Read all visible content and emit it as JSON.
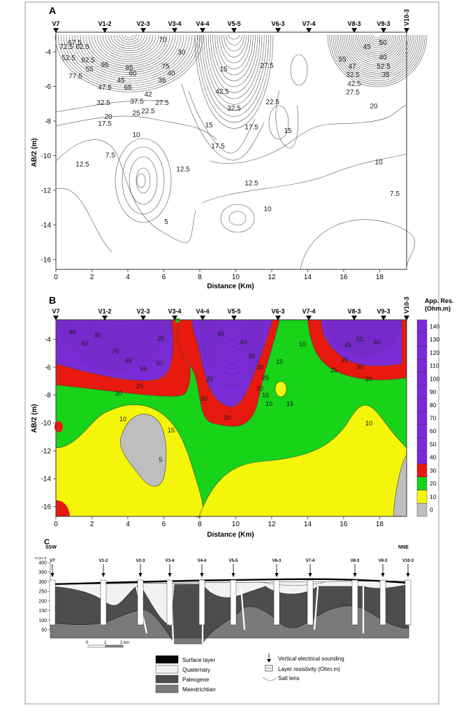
{
  "figure": {
    "panels": [
      {
        "label": "A",
        "y_axis_label": "AB/2 (m)",
        "x_axis_label": "Distance (Km)",
        "x_ticks": [
          "0",
          "2",
          "4",
          "6",
          "8",
          "10",
          "12",
          "14",
          "16",
          "18"
        ],
        "y_ticks": [
          "-4",
          "-6",
          "-8",
          "-10",
          "-12",
          "-14",
          "-16"
        ],
        "stations": [
          "V7",
          "V1-2",
          "V2-3",
          "V3-4",
          "V4-4",
          "V5-5",
          "V6-3",
          "V7-4",
          "V8-3",
          "V9-3",
          "V10-3"
        ],
        "contour_labels": [
          "72.5",
          "67.5",
          "62.5",
          "52.5",
          "55",
          "47.5",
          "32.5",
          "17.5",
          "95",
          "85",
          "77.5",
          "82.5",
          "65",
          "42",
          "37.5",
          "22.5",
          "27.5",
          "25",
          "20",
          "75",
          "70",
          "60",
          "45",
          "35",
          "30",
          "40",
          "10",
          "12.5",
          "7.5",
          "5",
          "15",
          "42.5",
          "32.5",
          "27.5",
          "22.5",
          "17.5",
          "15",
          "12.5",
          "10",
          "55",
          "47",
          "52.5",
          "42.5",
          "32.5",
          "27.5",
          "20",
          "35",
          "40",
          "45",
          "50",
          "10",
          "7.5",
          "12.5",
          "15",
          "17.5"
        ]
      },
      {
        "label": "B",
        "y_axis_label": "AB/2 (m)",
        "x_axis_label": "Distance (Km)",
        "x_ticks": [
          "0",
          "2",
          "4",
          "6",
          "8",
          "10",
          "12",
          "14",
          "16",
          "18"
        ],
        "y_ticks": [
          "-4",
          "-6",
          "-8",
          "-10",
          "-12",
          "-14",
          "-16"
        ],
        "stations": [
          "V7",
          "V1-2",
          "V2-3",
          "V3-4",
          "V4-4",
          "V5-5",
          "V6-3",
          "V7-4",
          "V8-3",
          "V9-3",
          "V10-3"
        ],
        "contour_labels": [
          "85",
          "90",
          "80",
          "70",
          "65",
          "55",
          "50",
          "45",
          "40",
          "35",
          "30",
          "25",
          "20",
          "15",
          "10",
          "5",
          "25",
          "20",
          "35",
          "45",
          "55",
          "60",
          "35",
          "30",
          "25",
          "20",
          "15",
          "10",
          "10",
          "15",
          "20",
          "25",
          "30",
          "15",
          "10"
        ],
        "colorbar_title": "App. Res. (Ohm.m)",
        "colorbar_ticks": [
          "140",
          "130",
          "120",
          "110",
          "100",
          "90",
          "80",
          "70",
          "60",
          "50",
          "40",
          "30",
          "20",
          "10",
          "0"
        ],
        "colorbar_colors": [
          "#7b2bd6",
          "#7b2bd6",
          "#7b2bd6",
          "#7b2bd6",
          "#7b2bd6",
          "#7b2bd6",
          "#7b2bd6",
          "#7b2bd6",
          "#7b2bd6",
          "#7b2bd6",
          "#7b2bd6",
          "#e8190f",
          "#18d418",
          "#f5f50a",
          "#bebebe"
        ]
      },
      {
        "label": "C",
        "left_label": "SSW",
        "right_label": "NNE",
        "y_unit": "m (a.s.l)",
        "y_ticks": [
          "400",
          "350",
          "300",
          "250",
          "200",
          "150",
          "100",
          "50"
        ],
        "stations": [
          "V7",
          "V1-2",
          "V2-3",
          "V3-4",
          "V4-4",
          "V5-5",
          "V6-3",
          "V7-4",
          "V8-3",
          "V9-3",
          "V10-3"
        ],
        "scale_labels": [
          "0",
          "1",
          "2 km"
        ],
        "legend": [
          {
            "label": "Surface layer",
            "color": "#000000"
          },
          {
            "label": "Quaternary",
            "color": "#f2f2f2"
          },
          {
            "label": "Paleogene",
            "color": "#4d4d4d"
          },
          {
            "label": "Maestrichtian",
            "color": "#7a7a7a"
          }
        ],
        "legend_symbols": [
          {
            "label": "Vertical electrical sounding",
            "icon": "sounding-arrow-icon"
          },
          {
            "label": "Layer resistivity (Ohm.m)",
            "icon": "resistivity-box-icon"
          },
          {
            "label": "Salt lens",
            "icon": "salt-lens-icon"
          }
        ]
      }
    ]
  }
}
